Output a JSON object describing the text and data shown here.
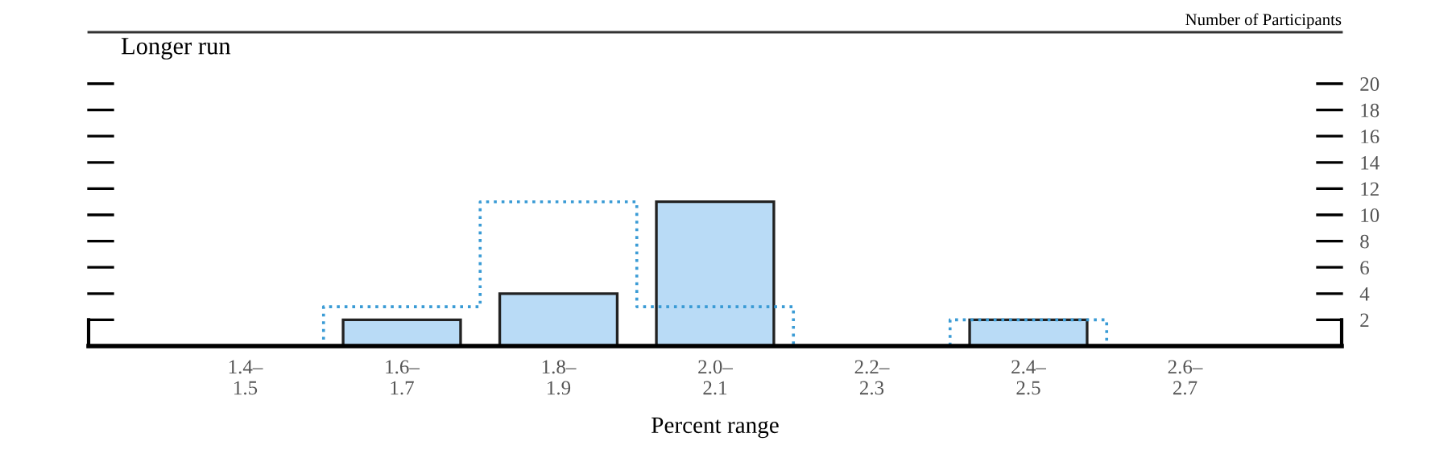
{
  "chart_data": {
    "type": "bar",
    "title": "Longer run",
    "ylabel": "Number of Participants",
    "xlabel": "Percent range",
    "categories": [
      "1.4–\n1.5",
      "1.6–\n1.7",
      "1.8–\n1.9",
      "2.0–\n2.1",
      "2.2–\n2.3",
      "2.4–\n2.5",
      "2.6–\n2.7"
    ],
    "series": [
      {
        "color": "#b9dbf6",
        "values": [
          0,
          2,
          4,
          11,
          0,
          2,
          0
        ]
      },
      {
        "type": "step",
        "color": "#3a9bd5",
        "line_style": "dotted",
        "values": [
          0,
          3,
          11,
          3,
          0,
          2,
          0
        ]
      }
    ],
    "ylim": [
      0,
      20
    ],
    "yticks": [
      2,
      4,
      6,
      8,
      10,
      12,
      14,
      16,
      18,
      20
    ],
    "grid": false,
    "legend": false
  }
}
